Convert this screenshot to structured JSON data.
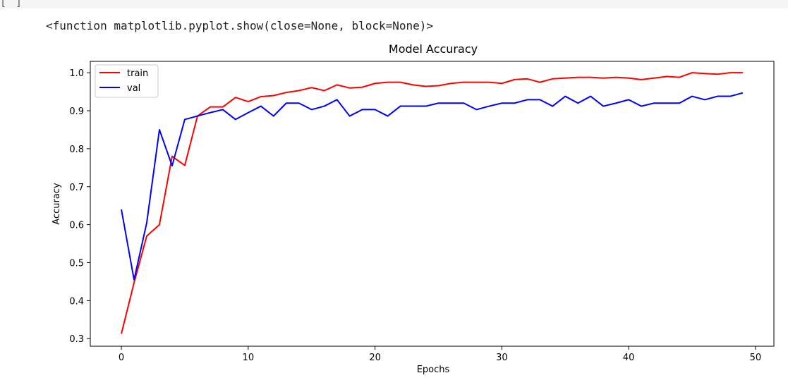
{
  "cell": {
    "run_indicator": "[ ]",
    "output_text": "<function matplotlib.pyplot.show(close=None, block=None)>"
  },
  "chart_data": {
    "type": "line",
    "title": "Model Accuracy",
    "xlabel": "Epochs",
    "ylabel": "Accuracy",
    "xlim": [
      -2.45,
      51.45
    ],
    "ylim": [
      0.28,
      1.03
    ],
    "xticks": [
      0,
      10,
      20,
      30,
      40,
      50
    ],
    "yticks": [
      0.3,
      0.4,
      0.5,
      0.6,
      0.7,
      0.8,
      0.9,
      1.0
    ],
    "ytick_labels": [
      "0.3",
      "0.4",
      "0.5",
      "0.6",
      "0.7",
      "0.8",
      "0.9",
      "1.0"
    ],
    "grid": false,
    "legend_position": "upper-left",
    "x": [
      0,
      1,
      2,
      3,
      4,
      5,
      6,
      7,
      8,
      9,
      10,
      11,
      12,
      13,
      14,
      15,
      16,
      17,
      18,
      19,
      20,
      21,
      22,
      23,
      24,
      25,
      26,
      27,
      28,
      29,
      30,
      31,
      32,
      33,
      34,
      35,
      36,
      37,
      38,
      39,
      40,
      41,
      42,
      43,
      44,
      45,
      46,
      47,
      48,
      49
    ],
    "series": [
      {
        "name": "train",
        "color": "#ff0000",
        "values": [
          0.313,
          0.447,
          0.57,
          0.6,
          0.78,
          0.756,
          0.886,
          0.91,
          0.91,
          0.935,
          0.924,
          0.937,
          0.94,
          0.948,
          0.953,
          0.961,
          0.953,
          0.968,
          0.96,
          0.962,
          0.972,
          0.975,
          0.975,
          0.968,
          0.964,
          0.966,
          0.972,
          0.975,
          0.975,
          0.975,
          0.972,
          0.982,
          0.984,
          0.975,
          0.984,
          0.986,
          0.988,
          0.988,
          0.986,
          0.988,
          0.986,
          0.982,
          0.986,
          0.99,
          0.988,
          1.0,
          0.998,
          0.996,
          1.0,
          1.0
        ]
      },
      {
        "name": "val",
        "color": "#0000ff",
        "values": [
          0.64,
          0.455,
          0.605,
          0.85,
          0.755,
          0.877,
          0.886,
          0.895,
          0.903,
          0.877,
          0.895,
          0.912,
          0.886,
          0.92,
          0.92,
          0.903,
          0.912,
          0.929,
          0.886,
          0.903,
          0.903,
          0.886,
          0.912,
          0.912,
          0.912,
          0.92,
          0.92,
          0.92,
          0.903,
          0.912,
          0.92,
          0.92,
          0.929,
          0.929,
          0.912,
          0.938,
          0.92,
          0.938,
          0.912,
          0.92,
          0.929,
          0.912,
          0.92,
          0.92,
          0.92,
          0.938,
          0.929,
          0.938,
          0.938,
          0.947
        ]
      }
    ]
  }
}
